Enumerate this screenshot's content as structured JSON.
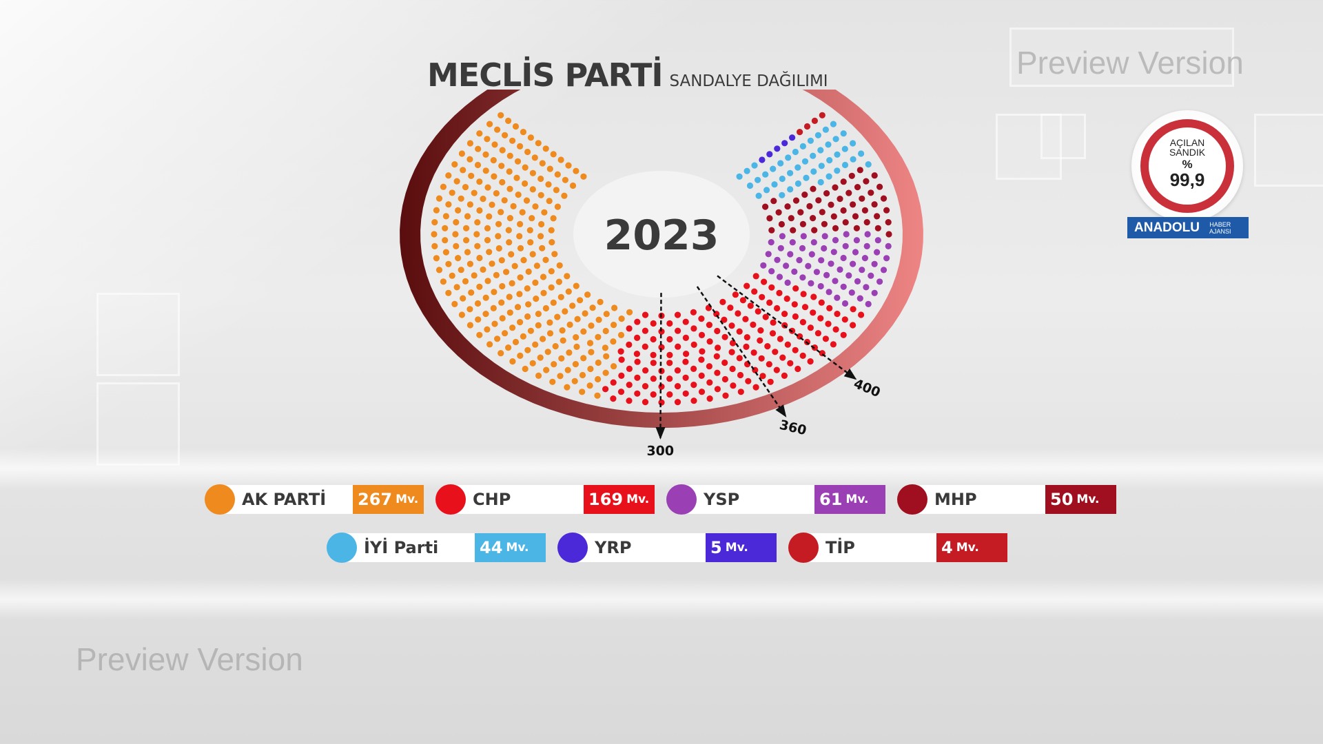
{
  "title": {
    "main": "MECLİS PARTİ",
    "sub": "SANDALYE DAĞILIMI"
  },
  "watermarks": {
    "top": "Preview Version",
    "bottom": "Preview Version"
  },
  "badge": {
    "line1": "AÇILAN",
    "line2": "SANDIK",
    "pct": "%",
    "value": "99,9"
  },
  "agency": {
    "name": "ANADOLU",
    "sub1": "HABER",
    "sub2": "AJANSI"
  },
  "colors": {
    "arc_dark": "#5a0d0e",
    "arc_light": "#ee8585",
    "center": "#f3f3f3"
  },
  "chart_data": {
    "type": "parliament",
    "year_label": "2023",
    "total_seats": 600,
    "unit": "Mv.",
    "series": [
      {
        "name": "AK PARTİ",
        "seats": 267,
        "color": "#ef8a1e"
      },
      {
        "name": "CHP",
        "seats": 169,
        "color": "#e8101a"
      },
      {
        "name": "YSP",
        "seats": 61,
        "color": "#9b3fb5"
      },
      {
        "name": "MHP",
        "seats": 50,
        "color": "#a00f1f"
      },
      {
        "name": "İYİ Parti",
        "seats": 44,
        "color": "#4bb5e5"
      },
      {
        "name": "YRP",
        "seats": 5,
        "color": "#4b28d8"
      },
      {
        "name": "TİP",
        "seats": 4,
        "color": "#c41c22"
      }
    ],
    "markers": [
      {
        "label": "300",
        "seat": 300
      },
      {
        "label": "360",
        "seat": 360
      },
      {
        "label": "400",
        "seat": 400
      }
    ]
  },
  "legend": [
    {
      "name": "AK PARTİ",
      "count": "267",
      "unit": "Mv.",
      "color": "#ef8a1e"
    },
    {
      "name": "CHP",
      "count": "169",
      "unit": "Mv.",
      "color": "#e8101a"
    },
    {
      "name": "YSP",
      "count": "61",
      "unit": "Mv.",
      "color": "#9b3fb5"
    },
    {
      "name": "MHP",
      "count": "50",
      "unit": "Mv.",
      "color": "#a00f1f"
    },
    {
      "name": "İYİ Parti",
      "count": "44",
      "unit": "Mv.",
      "color": "#4bb5e5"
    },
    {
      "name": "YRP",
      "count": "5",
      "unit": "Mv.",
      "color": "#4b28d8"
    },
    {
      "name": "TİP",
      "count": "4",
      "unit": "Mv.",
      "color": "#c41c22"
    }
  ]
}
